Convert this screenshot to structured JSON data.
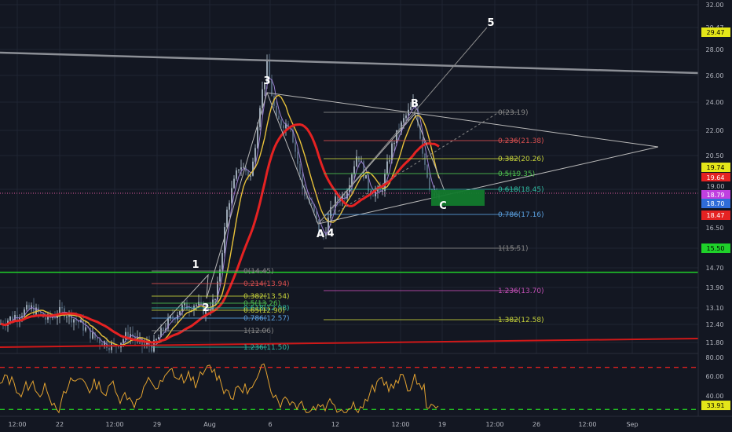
{
  "colors": {
    "background": "#131722",
    "grid": "#1f2433",
    "axis_text": "#b2b5be",
    "candle_up": "#9aa7b4",
    "candle_down": "#4e6275",
    "ma_red": "#e52222",
    "ma_yellow": "#e8c23a",
    "ma_purple": "#9a7fd0",
    "wave_line": "#b8b8b8",
    "hline_yellow": "#e4e619",
    "hline_green": "#1fd12a",
    "support_red": "#d01818",
    "target_box": "#127a2d",
    "rsi_line": "#e2a230",
    "rsi_upper": "#e02020",
    "rsi_lower": "#22c322"
  },
  "chart_data": {
    "type": "candlestick",
    "price_axis": {
      "ticks": [
        "32.00",
        "29.47",
        "28.00",
        "26.00",
        "24.00",
        "22.00",
        "20.50",
        "19.74",
        "19.64",
        "19.00",
        "18.79",
        "18.70",
        "18.47",
        "16.50",
        "15.50",
        "14.70",
        "13.90",
        "13.10",
        "12.40",
        "11.80"
      ]
    },
    "price_labels": [
      {
        "text": "29.47",
        "color": "#e4e619",
        "text_color": "#000000"
      },
      {
        "text": "19.74",
        "color": "#e4e619",
        "text_color": "#000000"
      },
      {
        "text": "19.64",
        "color": "#e52222",
        "text_color": "#ffffff"
      },
      {
        "text": "19.00",
        "color": "#131722",
        "text_color": "#b2b5be"
      },
      {
        "text": "18.79",
        "color": "#c040e0",
        "text_color": "#ffffff"
      },
      {
        "text": "18.70",
        "color": "#2f6cd8",
        "text_color": "#ffffff"
      },
      {
        "text": "18.47",
        "color": "#e52222",
        "text_color": "#ffffff"
      },
      {
        "text": "15.50",
        "color": "#1fd12a",
        "text_color": "#000000"
      }
    ],
    "time_axis": {
      "ticks": [
        "12:00",
        "22",
        "12:00",
        "29",
        "Aug",
        "6",
        "12",
        "12:00",
        "19",
        "12:00",
        "26",
        "12:00",
        "Sep"
      ]
    },
    "horizontal_levels": [
      {
        "name": "resistance-29.47",
        "price": 29.47,
        "color": "#e4e619"
      },
      {
        "name": "support-15.50",
        "price": 15.5,
        "color": "#1fd12a"
      }
    ],
    "elliott_labels": [
      "1",
      "2",
      "3",
      "4",
      "5",
      "A",
      "B",
      "C"
    ],
    "fib_retracement_upper": [
      {
        "ratio": "0",
        "price": "23.19",
        "color": "#888888"
      },
      {
        "ratio": "0.236",
        "price": "21.38",
        "color": "#d94f4f"
      },
      {
        "ratio": "0.382",
        "price": "20.26",
        "color": "#c6d23a"
      },
      {
        "ratio": "0.5",
        "price": "19.35",
        "color": "#4fc24f"
      },
      {
        "ratio": "0.618",
        "price": "18.45",
        "color": "#2fb8a0"
      },
      {
        "ratio": "0.786",
        "price": "17.16",
        "color": "#5aa0e0"
      },
      {
        "ratio": "1",
        "price": "15.51",
        "color": "#888888"
      },
      {
        "ratio": "1.236",
        "price": "13.70",
        "color": "#c24fb5"
      },
      {
        "ratio": "1.382",
        "price": "12.58",
        "color": "#c6d23a"
      }
    ],
    "fib_retracement_lower": [
      {
        "ratio": "0",
        "price": "14.45",
        "color": "#888888"
      },
      {
        "ratio": "0.214",
        "price": "13.94",
        "color": "#d94f4f"
      },
      {
        "ratio": "0.382",
        "price": "13.54",
        "color": "#c6d23a"
      },
      {
        "ratio": "0.5",
        "price": "13.26",
        "color": "#4fc24f"
      },
      {
        "ratio": "0.618",
        "price": "12.98",
        "color": "#2fb8a0"
      },
      {
        "ratio": "0.65",
        "price": "12.90",
        "color": "#c6d23a"
      },
      {
        "ratio": "0.786",
        "price": "12.57",
        "color": "#5aa0e0"
      },
      {
        "ratio": "1",
        "price": "12.06",
        "color": "#888888"
      },
      {
        "ratio": "1.236",
        "price": "11.50",
        "color": "#2fb8a0"
      }
    ],
    "rsi": {
      "ticks": [
        "80.00",
        "60.00",
        "40.00",
        "33.91"
      ],
      "upper_band": 70,
      "lower_band": 30,
      "value_label": "33.91"
    }
  }
}
